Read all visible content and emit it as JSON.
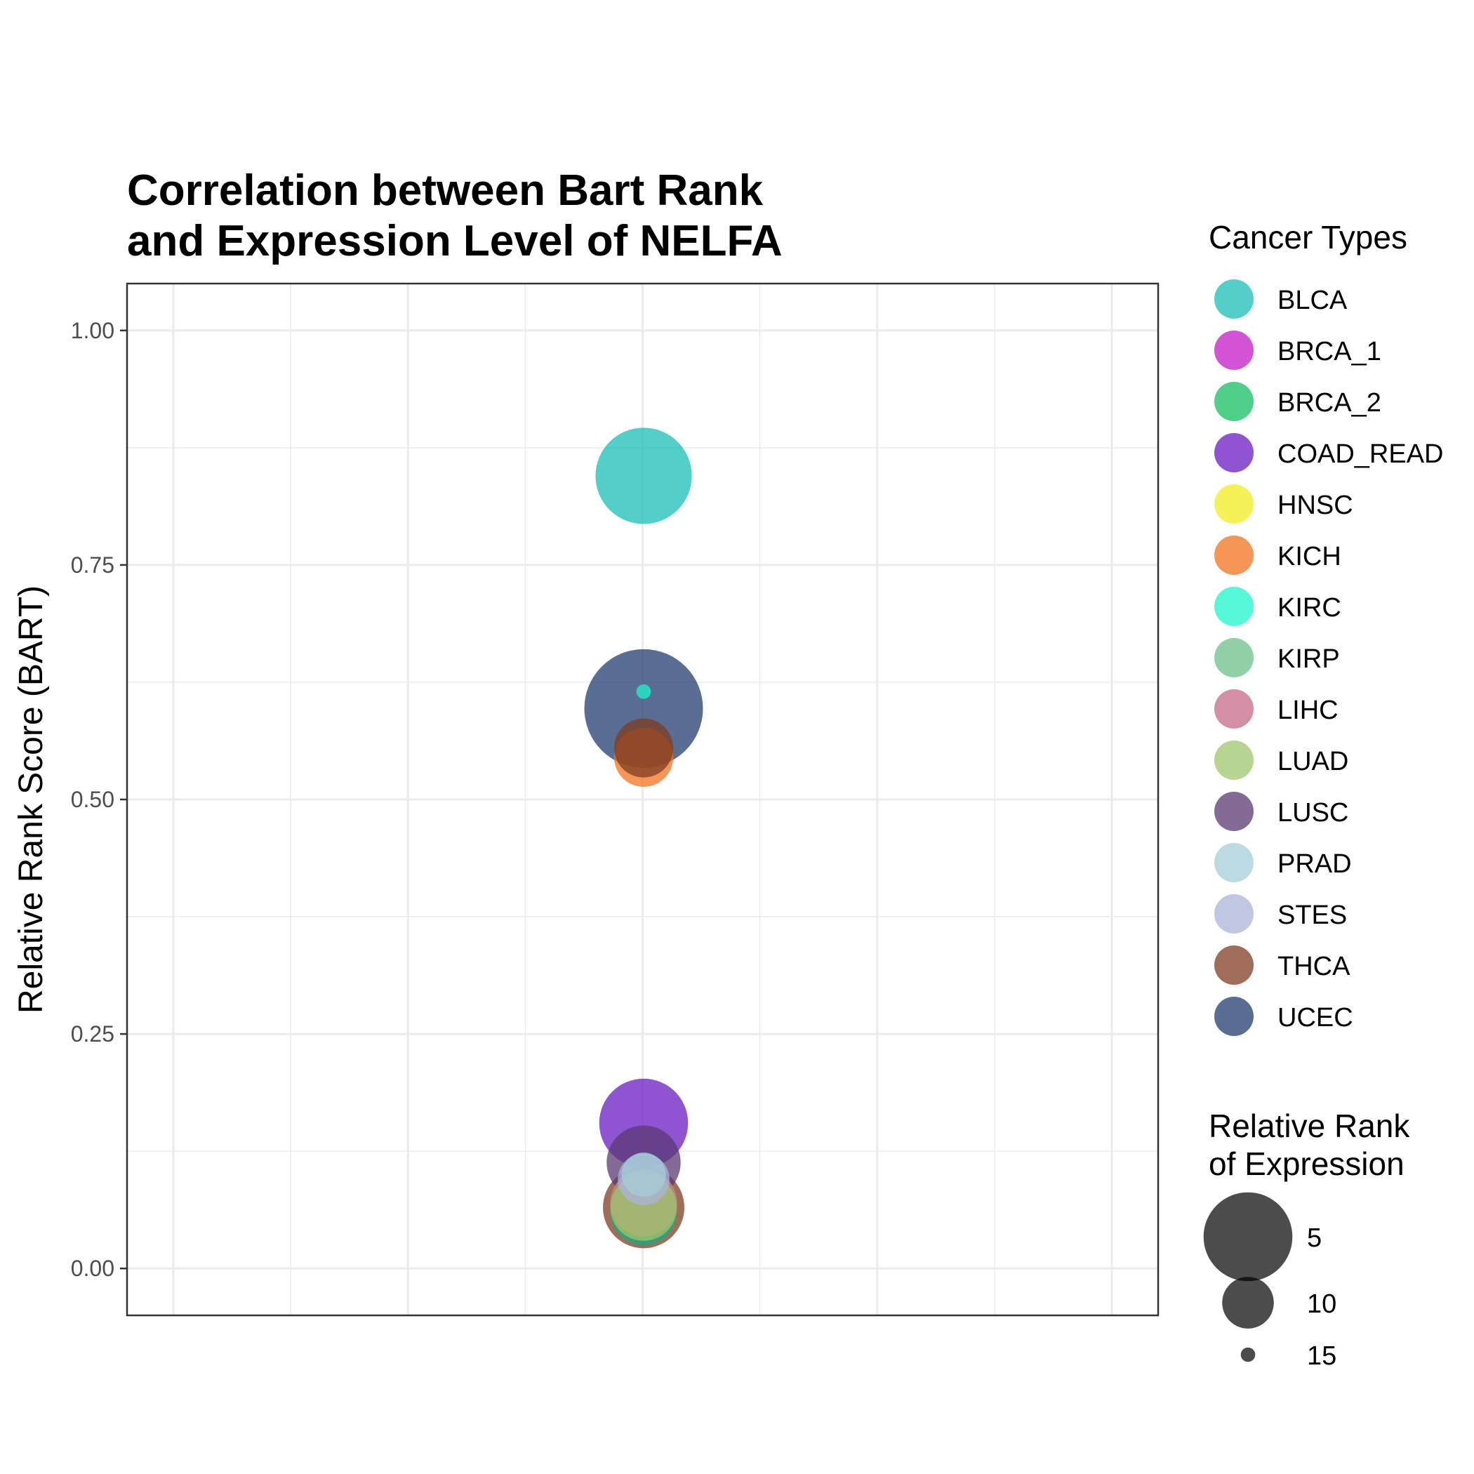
{
  "chart_data": {
    "type": "scatter",
    "title": [
      "Correlation between Bart Rank",
      "and Expression Level of NELFA"
    ],
    "xlabel": "",
    "ylabel": "Relative Rank Score (BART)",
    "ylim": [
      -0.05,
      1.05
    ],
    "yticks": [
      {
        "value": 0.0,
        "label": "0.00"
      },
      {
        "value": 0.25,
        "label": "0.25"
      },
      {
        "value": 0.5,
        "label": "0.50"
      },
      {
        "value": 0.75,
        "label": "0.75"
      },
      {
        "value": 1.0,
        "label": "1.00"
      }
    ],
    "grid": true,
    "legend_position": "right",
    "color_legend_title": "Cancer Types",
    "size_legend_title": [
      "Relative Rank",
      "of Expression"
    ],
    "size_legend": [
      {
        "label": "5",
        "value": 5
      },
      {
        "label": "10",
        "value": 10
      },
      {
        "label": "15",
        "value": 15
      }
    ],
    "series": [
      {
        "name": "BLCA",
        "color": "#1ABFB7",
        "y": 0.845,
        "expression_rank": 4
      },
      {
        "name": "BRCA_1",
        "color": "#C21BC7",
        "y": 0.06,
        "expression_rank": 8
      },
      {
        "name": "BRCA_2",
        "color": "#16BF63",
        "y": 0.06,
        "expression_rank": 8
      },
      {
        "name": "COAD_READ",
        "color": "#6A1BC2",
        "y": 0.155,
        "expression_rank": 5
      },
      {
        "name": "HNSC",
        "color": "#F0EE1D",
        "y": 0.07,
        "expression_rank": 8
      },
      {
        "name": "KICH",
        "color": "#F2731F",
        "y": 0.545,
        "expression_rank": 9
      },
      {
        "name": "KIRC",
        "color": "#1DF5CE",
        "y": 0.615,
        "expression_rank": 15
      },
      {
        "name": "KIRP",
        "color": "#6BC28A",
        "y": 0.07,
        "expression_rank": 8
      },
      {
        "name": "LIHC",
        "color": "#C66A8A",
        "y": 0.07,
        "expression_rank": 8
      },
      {
        "name": "LUAD",
        "color": "#9FC56C",
        "y": 0.065,
        "expression_rank": 8
      },
      {
        "name": "LUSC",
        "color": "#5A3A73",
        "y": 0.113,
        "expression_rank": 7
      },
      {
        "name": "PRAD",
        "color": "#A5CED8",
        "y": 0.1,
        "expression_rank": 11
      },
      {
        "name": "STES",
        "color": "#A9B4DA",
        "y": 0.095,
        "expression_rank": 10
      },
      {
        "name": "THCA",
        "color": "#7F3C22",
        "y": 0.065,
        "expression_rank": 6
      },
      {
        "name": "UCEC",
        "color": "#233D70",
        "y": 0.597,
        "expression_rank": 1
      }
    ],
    "overlay_points": [
      {
        "series": "THCA",
        "y": 0.555,
        "expression_rank": 9
      }
    ]
  }
}
